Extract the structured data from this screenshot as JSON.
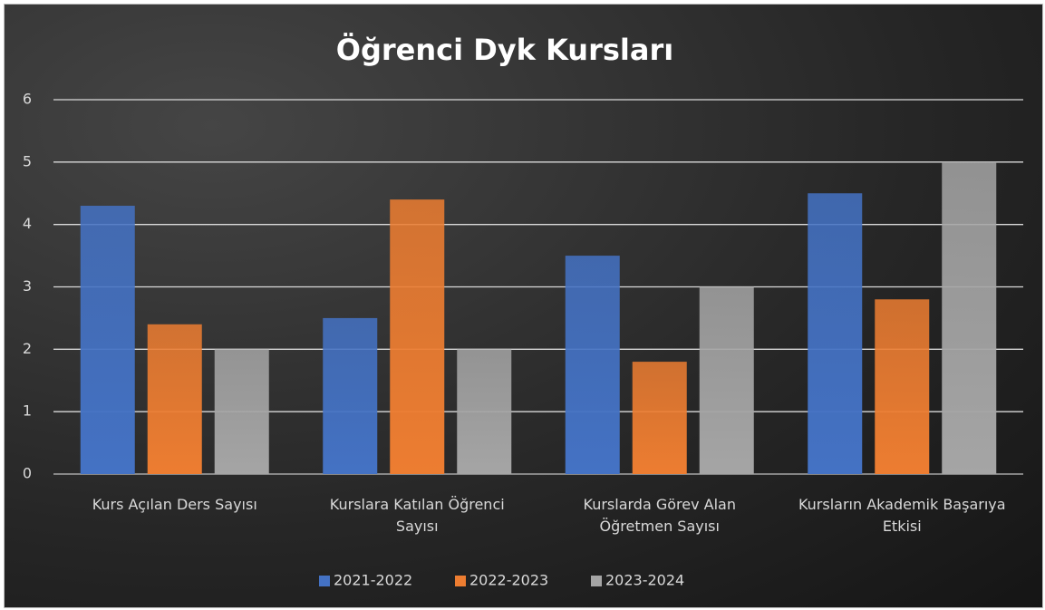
{
  "chart_data": {
    "type": "bar",
    "title": "Öğrenci Dyk Kursları",
    "categories": [
      "Kurs Açılan Ders Sayısı",
      "Kurslara Katılan Öğrenci Sayısı",
      "Kurslarda Görev Alan Öğretmen Sayısı",
      "Kursların Akademik Başarıya Etkisi"
    ],
    "series": [
      {
        "name": "2021-2022",
        "color": "#4472c4",
        "values": [
          4.3,
          2.5,
          3.5,
          4.5
        ]
      },
      {
        "name": "2022-2023",
        "color": "#ed7d31",
        "values": [
          2.4,
          4.4,
          1.8,
          2.8
        ]
      },
      {
        "name": "2023-2024",
        "color": "#a5a5a5",
        "values": [
          2,
          2,
          3,
          5
        ]
      }
    ],
    "ylim": [
      0,
      6
    ],
    "yticks": [
      0,
      1,
      2,
      3,
      4,
      5,
      6
    ],
    "grid": true,
    "legend": "bottom"
  }
}
